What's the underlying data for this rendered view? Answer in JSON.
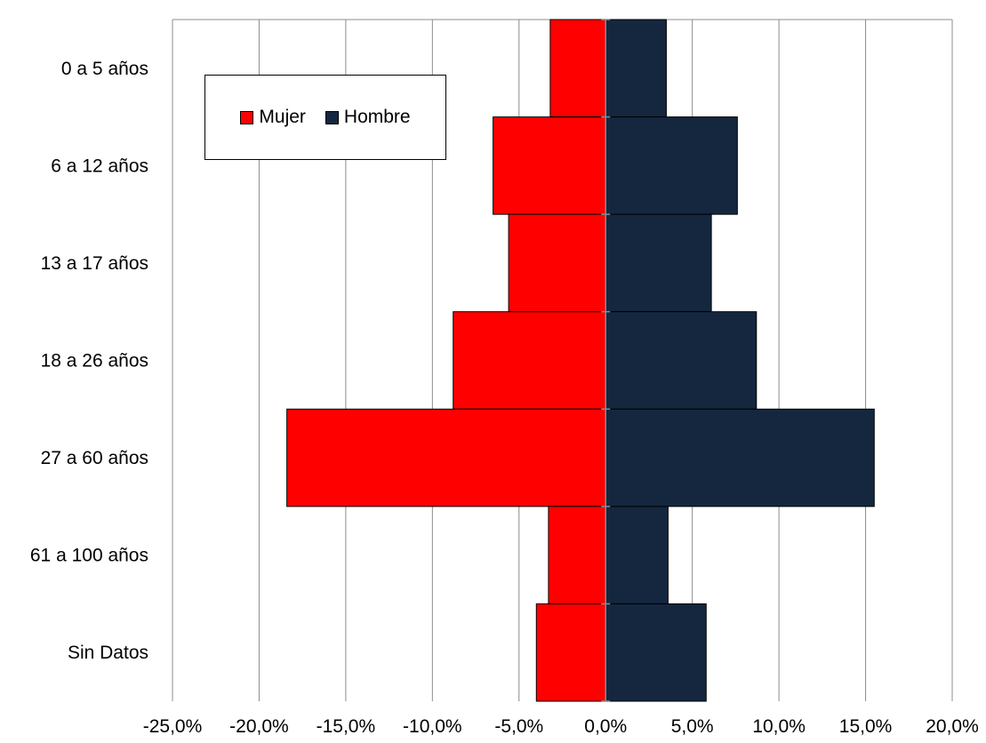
{
  "chart_data": {
    "type": "bar",
    "orientation": "horizontal",
    "categories": [
      "0 a 5 años",
      "6 a 12 años",
      "13 a 17 años",
      "18 a 26 años",
      "27 a 60 años",
      "61 a 100 años",
      "Sin Datos"
    ],
    "series": [
      {
        "name": "Mujer",
        "color": "#ff0000",
        "values": [
          -3.2,
          -6.5,
          -5.6,
          -8.8,
          -18.4,
          -3.3,
          -4.0
        ]
      },
      {
        "name": "Hombre",
        "color": "#14273f",
        "values": [
          3.5,
          7.6,
          6.1,
          8.7,
          15.5,
          3.6,
          5.8
        ]
      }
    ],
    "xlim": [
      -25,
      20
    ],
    "xticks": [
      -25,
      -20,
      -15,
      -10,
      -5,
      0,
      5,
      10,
      15,
      20
    ],
    "xtick_labels": [
      "-25,0%",
      "-20,0%",
      "-15,0%",
      "-10,0%",
      "-5,0%",
      "0,0%",
      "5,0%",
      "10,0%",
      "15,0%",
      "20,0%"
    ],
    "grid": true,
    "legend_position": "top-left",
    "title": "",
    "xlabel": "",
    "ylabel": ""
  }
}
